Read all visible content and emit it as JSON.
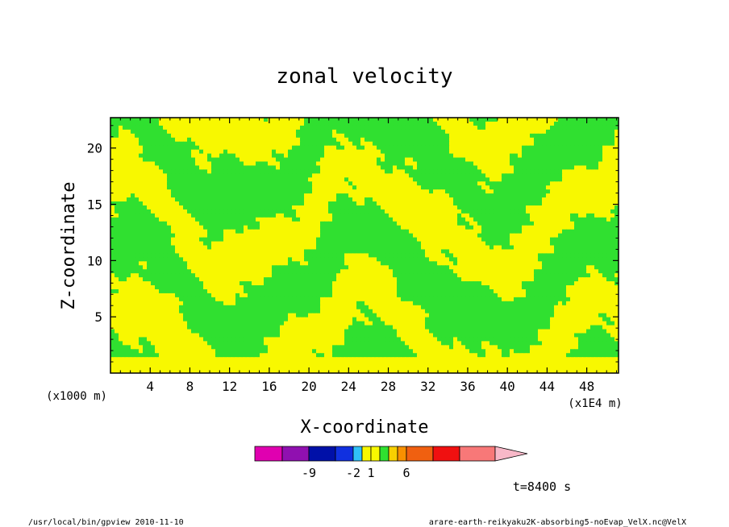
{
  "chart_data": {
    "type": "heatmap",
    "title": "zonal velocity",
    "xlabel": "X-coordinate",
    "ylabel": "Z-coordinate",
    "x_unit": "(x1E4 m)",
    "y_unit": "(x1000 m)",
    "x_ticks": [
      "4",
      "8",
      "12",
      "16",
      "20",
      "24",
      "28",
      "32",
      "36",
      "40",
      "44",
      "48"
    ],
    "y_ticks": [
      "5",
      "10",
      "15",
      "20"
    ],
    "xlim": [
      0,
      51.2
    ],
    "ylim": [
      0,
      22.7
    ],
    "colorbar": {
      "colors": [
        "#e000b0",
        "#9010b0",
        "#0010a8",
        "#1030e0",
        "#30c0f8",
        "#f8f800",
        "#f8f800",
        "#30e030",
        "#f8d000",
        "#f89000",
        "#f06010",
        "#f01010",
        "#f87878",
        "#f8b8c8"
      ],
      "labels": [
        {
          "text": "-9",
          "value": -9
        },
        {
          "text": "-2",
          "value": -2
        },
        {
          "text": "1",
          "value": 1
        },
        {
          "text": "6",
          "value": 6
        }
      ]
    },
    "field_colors": {
      "positive_band": "#f8f800",
      "negative_band": "#30e030"
    },
    "time_label": "t=8400 s"
  },
  "footer": {
    "left": "/usr/local/bin/gpview  2010-11-10",
    "right": "arare-earth-reikyaku2K-absorbing5-noEvap_VelX.nc@VelX"
  }
}
